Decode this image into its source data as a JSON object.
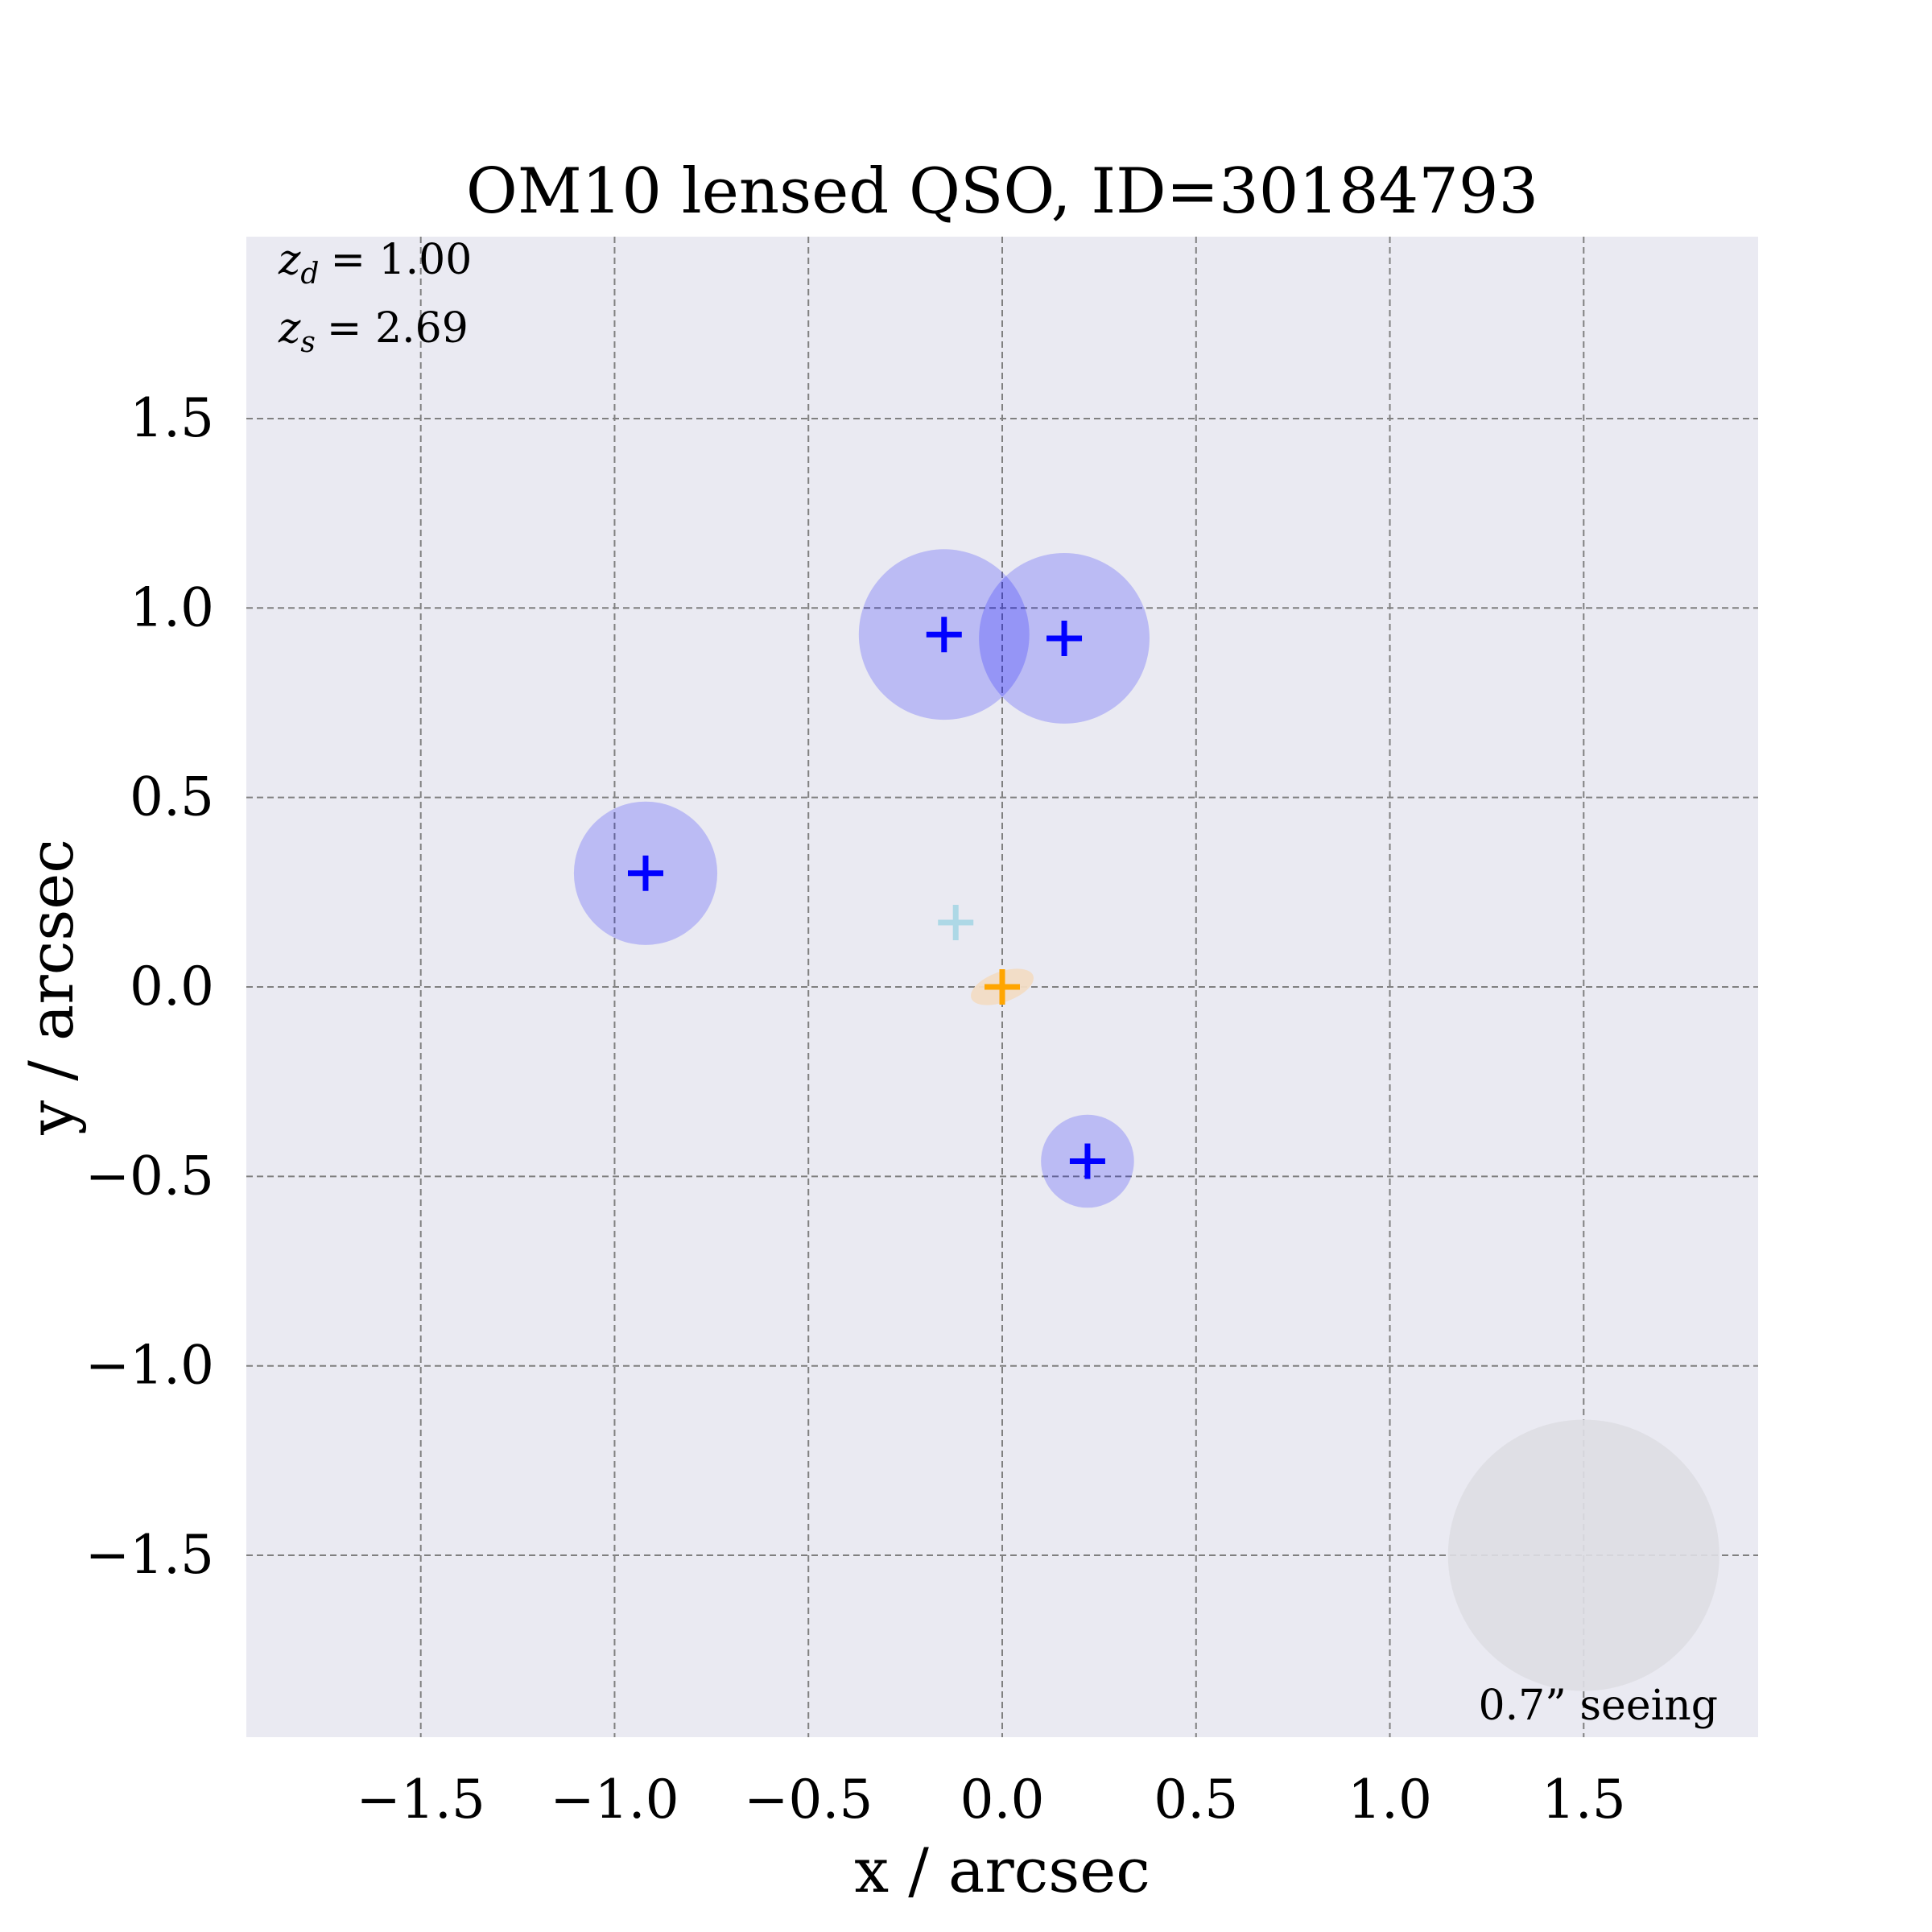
{
  "chart_data": {
    "type": "scatter",
    "title": "OM10 lensed QSO, ID=30184793",
    "xlabel": "x / arcsec",
    "ylabel": "y / arcsec",
    "xlim": [
      -1.95,
      1.95
    ],
    "ylim": [
      -1.98,
      1.98
    ],
    "xticks": [
      -1.5,
      -1.0,
      -0.5,
      0.0,
      0.5,
      1.0,
      1.5
    ],
    "yticks": [
      -1.5,
      -1.0,
      -0.5,
      0.0,
      0.5,
      1.0,
      1.5
    ],
    "xtick_labels": [
      "−1.5",
      "−1.0",
      "−0.5",
      "0.0",
      "0.5",
      "1.0",
      "1.5"
    ],
    "ytick_labels": [
      "−1.5",
      "−1.0",
      "−0.5",
      "0.0",
      "0.5",
      "1.0",
      "1.5"
    ],
    "grid": true,
    "annotations": {
      "z_d": "= 1.00",
      "z_s": "= 2.69",
      "seeing": "0.7” seeing"
    },
    "colors": {
      "background": "#eaeaf2",
      "image": "#0000ff",
      "image_fill": "#b4b6f0",
      "source": "#add8e6",
      "lens": "#ffa500",
      "lens_fill": "#f2dcc4",
      "seeing": "#dedee3"
    },
    "images": [
      {
        "x": -0.15,
        "y": 0.93,
        "radius": 0.22
      },
      {
        "x": 0.16,
        "y": 0.92,
        "radius": 0.22
      },
      {
        "x": -0.92,
        "y": 0.3,
        "radius": 0.185
      },
      {
        "x": 0.22,
        "y": -0.46,
        "radius": 0.12
      }
    ],
    "source": {
      "x": -0.12,
      "y": 0.17
    },
    "lens": {
      "x": 0.0,
      "y": 0.0,
      "semi_major": 0.085,
      "semi_minor": 0.04,
      "angle_deg": 20
    },
    "seeing_disk": {
      "x": 1.5,
      "y": -1.5,
      "radius": 0.35
    }
  }
}
